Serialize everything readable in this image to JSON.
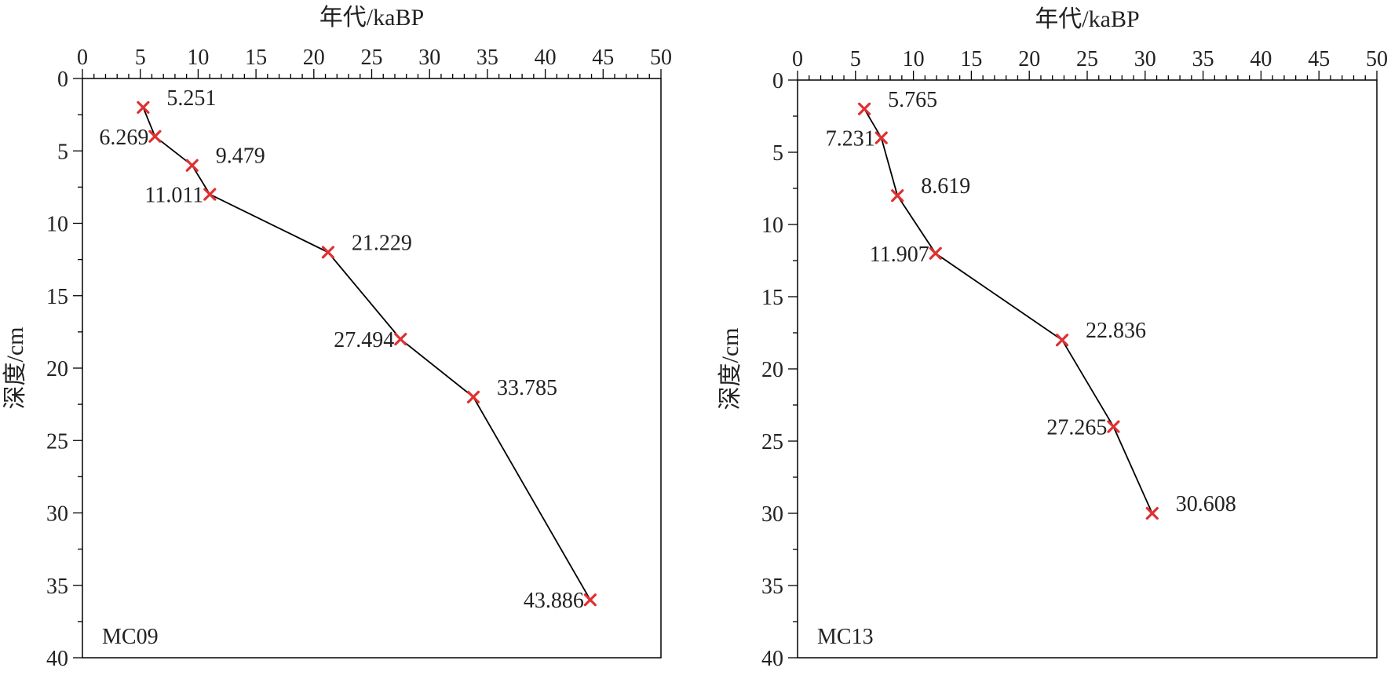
{
  "chart_data": [
    {
      "type": "line",
      "core": "MC09",
      "xlabel": "年代/kaBP",
      "ylabel": "深度/cm",
      "xlim": [
        0,
        50
      ],
      "ylim": [
        0,
        40
      ],
      "y_inverted": true,
      "x_axis_position": "top",
      "xticks": [
        0,
        5,
        10,
        15,
        20,
        25,
        30,
        35,
        40,
        45,
        50
      ],
      "yticks": [
        0,
        5,
        10,
        15,
        20,
        25,
        30,
        35,
        40
      ],
      "grid": false,
      "marker": "x",
      "marker_color": "#e03030",
      "line_color": "#000000",
      "points": [
        {
          "age": 5.251,
          "depth": 2,
          "label": "5.251",
          "label_side": "right"
        },
        {
          "age": 6.269,
          "depth": 4,
          "label": "6.269",
          "label_side": "left"
        },
        {
          "age": 9.479,
          "depth": 6,
          "label": "9.479",
          "label_side": "right"
        },
        {
          "age": 11.011,
          "depth": 8,
          "label": "11.011",
          "label_side": "left"
        },
        {
          "age": 21.229,
          "depth": 12,
          "label": "21.229",
          "label_side": "right"
        },
        {
          "age": 27.494,
          "depth": 18,
          "label": "27.494",
          "label_side": "left"
        },
        {
          "age": 33.785,
          "depth": 22,
          "label": "33.785",
          "label_side": "right"
        },
        {
          "age": 43.886,
          "depth": 36,
          "label": "43.886",
          "label_side": "left"
        }
      ]
    },
    {
      "type": "line",
      "core": "MC13",
      "xlabel": "年代/kaBP",
      "ylabel": "深度/cm",
      "xlim": [
        0,
        50
      ],
      "ylim": [
        0,
        40
      ],
      "y_inverted": true,
      "x_axis_position": "top",
      "xticks": [
        0,
        5,
        10,
        15,
        20,
        25,
        30,
        35,
        40,
        45,
        50
      ],
      "yticks": [
        0,
        5,
        10,
        15,
        20,
        25,
        30,
        35,
        40
      ],
      "grid": false,
      "marker": "x",
      "marker_color": "#e03030",
      "line_color": "#000000",
      "points": [
        {
          "age": 5.765,
          "depth": 2,
          "label": "5.765",
          "label_side": "right"
        },
        {
          "age": 7.231,
          "depth": 4,
          "label": "7.231",
          "label_side": "left"
        },
        {
          "age": 8.619,
          "depth": 8,
          "label": "8.619",
          "label_side": "right"
        },
        {
          "age": 11.907,
          "depth": 12,
          "label": "11.907",
          "label_side": "left"
        },
        {
          "age": 22.836,
          "depth": 18,
          "label": "22.836",
          "label_side": "right"
        },
        {
          "age": 27.265,
          "depth": 24,
          "label": "27.265",
          "label_side": "left"
        },
        {
          "age": 30.608,
          "depth": 30,
          "label": "30.608",
          "label_side": "right"
        }
      ]
    }
  ]
}
